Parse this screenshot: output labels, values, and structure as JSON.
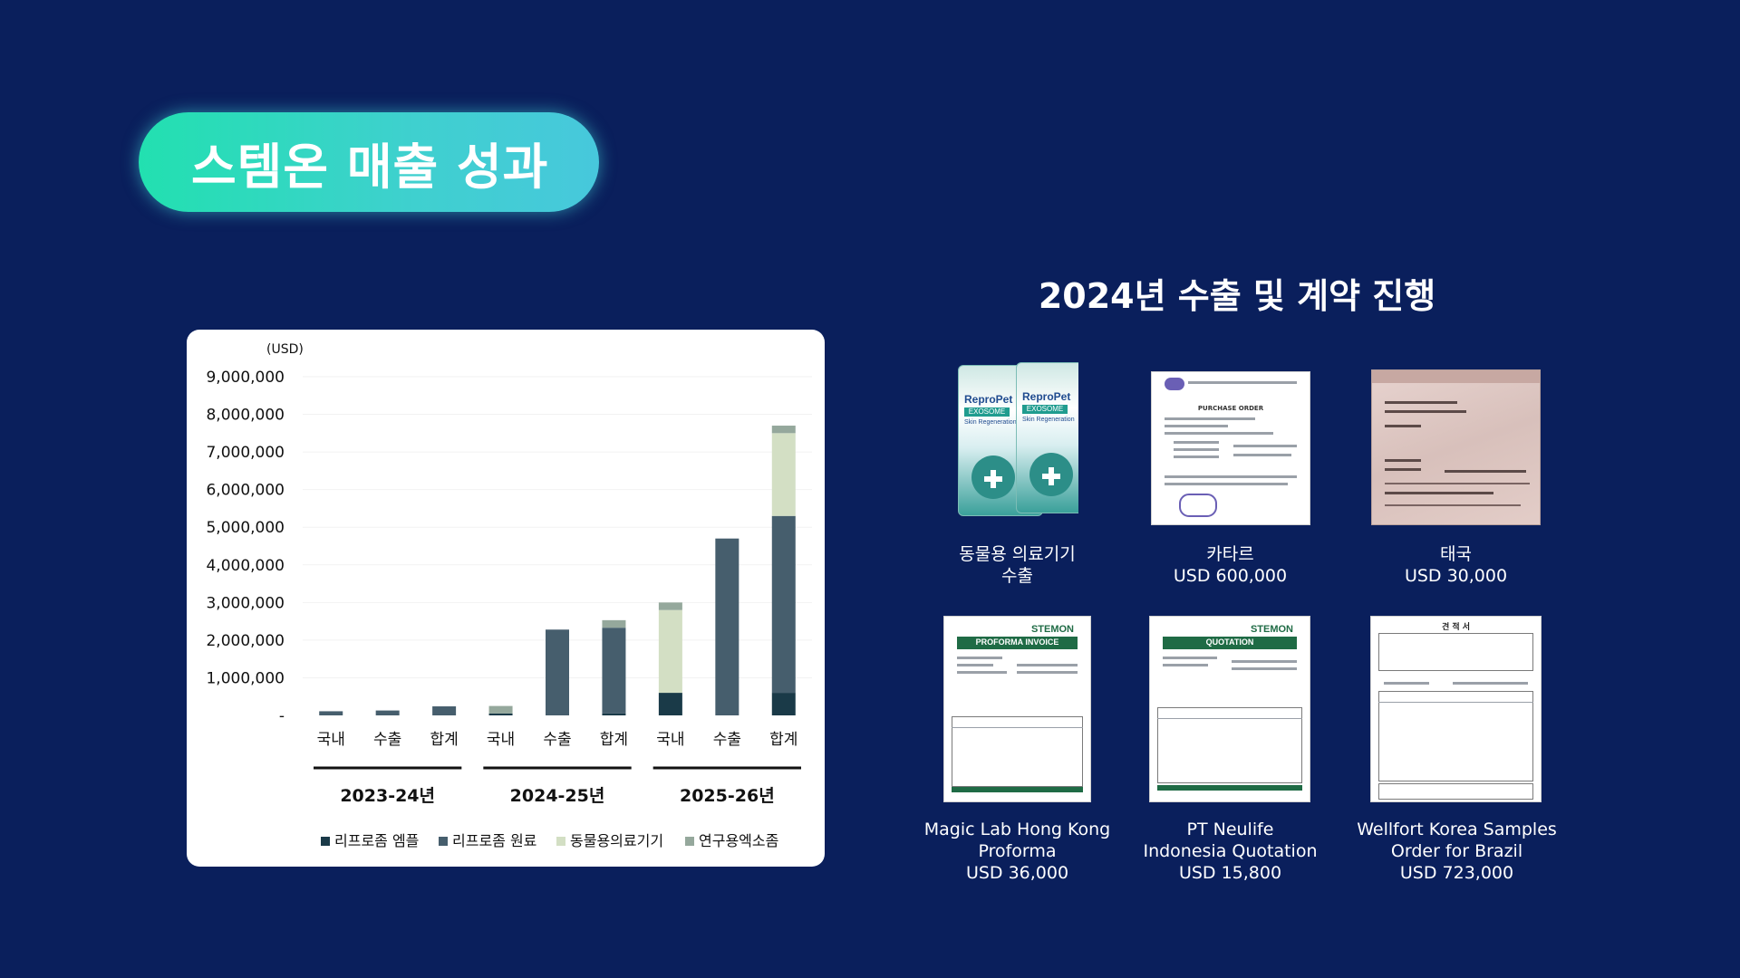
{
  "page": {
    "title": "스템온 매출 성과"
  },
  "chart_data": {
    "type": "bar",
    "stacked": true,
    "unit_label": "(USD)",
    "ylim": [
      0,
      9000000
    ],
    "yticks": [
      "9,000,000",
      "8,000,000",
      "7,000,000",
      "6,000,000",
      "5,000,000",
      "4,000,000",
      "3,000,000",
      "2,000,000",
      "1,000,000",
      "-"
    ],
    "ytick_values": [
      9000000,
      8000000,
      7000000,
      6000000,
      5000000,
      4000000,
      3000000,
      2000000,
      1000000,
      0
    ],
    "categories": [
      "국내",
      "수출",
      "합계",
      "국내",
      "수출",
      "합계",
      "국내",
      "수출",
      "합계"
    ],
    "groups": [
      "2023-24년",
      "2024-25년",
      "2025-26년"
    ],
    "series": [
      {
        "name": "리프로좀 엠플",
        "color": "#1a3a48",
        "values": [
          0,
          0,
          0,
          50000,
          0,
          50000,
          600000,
          0,
          600000
        ]
      },
      {
        "name": "리프로좀 원료",
        "color": "#465e6d",
        "values": [
          110000,
          130000,
          240000,
          0,
          2280000,
          2280000,
          0,
          4700000,
          4700000
        ]
      },
      {
        "name": "동물용의료기기",
        "color": "#d3dfc4",
        "values": [
          0,
          0,
          0,
          0,
          0,
          0,
          2200000,
          0,
          2200000
        ]
      },
      {
        "name": "연구용엑소좀",
        "color": "#95a89c",
        "values": [
          0,
          0,
          0,
          200000,
          0,
          200000,
          200000,
          0,
          200000
        ]
      }
    ],
    "grid": false,
    "legend_position": "bottom"
  },
  "right": {
    "title": "2024년 수출 및 계약 진행",
    "items": [
      {
        "lines": [
          "동물용 의료기기",
          "수출"
        ]
      },
      {
        "lines": [
          "카타르",
          "USD 600,000"
        ]
      },
      {
        "lines": [
          "태국",
          "USD 30,000"
        ]
      },
      {
        "lines": [
          "Magic Lab Hong Kong",
          "Proforma",
          "USD 36,000"
        ]
      },
      {
        "lines": [
          "PT Neulife",
          "Indonesia Quotation",
          "USD 15,800"
        ]
      },
      {
        "lines": [
          "Wellfort Korea Samples",
          "Order for Brazil",
          "USD 723,000"
        ]
      }
    ]
  },
  "thumbs": {
    "product_brand": "ReproPet",
    "product_band": "EXOSOME",
    "product_sub": "Skin Regeneration",
    "proforma_logo": "STEMON",
    "proforma_header": "PROFORMA INVOICE",
    "quotation_logo": "STEMON",
    "quotation_header": "QUOTATION",
    "po_header": "PURCHASE ORDER",
    "estimate_header": "견 적 서"
  }
}
